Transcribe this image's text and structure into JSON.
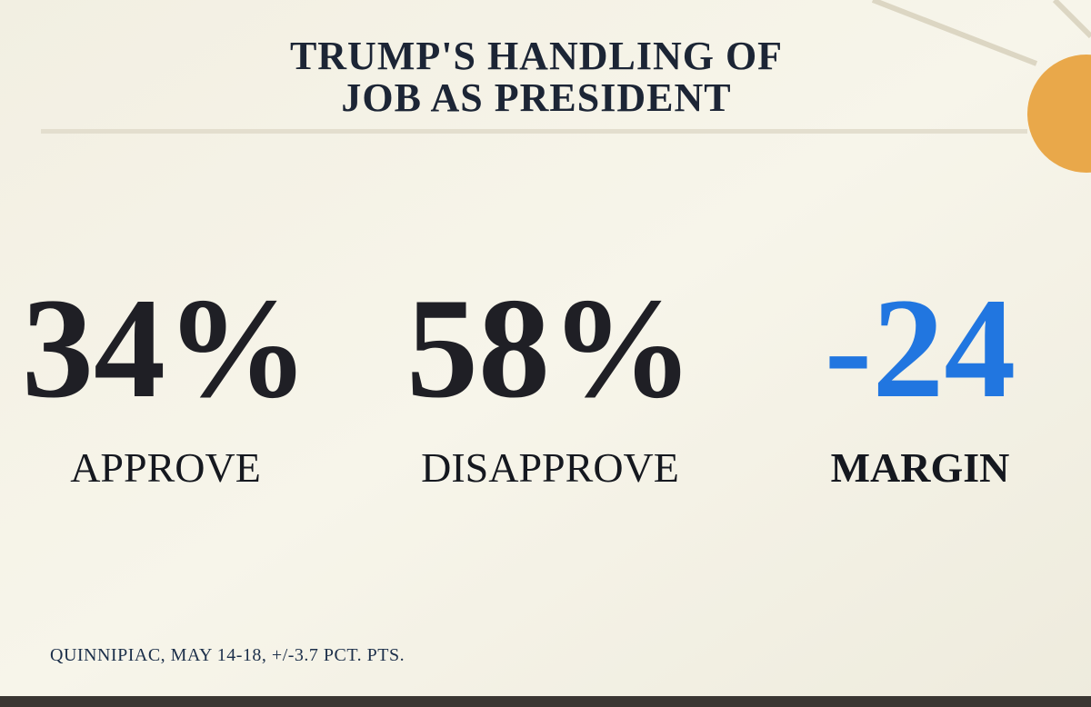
{
  "header": {
    "title_lines": [
      "TRUMP'S HANDLING OF",
      "JOB AS PRESIDENT"
    ]
  },
  "stats": [
    {
      "value": "34%",
      "label": "APPROVE"
    },
    {
      "value": "58%",
      "label": "DISAPPROVE"
    },
    {
      "value": "-24",
      "label": "MARGIN"
    }
  ],
  "footer": {
    "source": "QUINNIPIAC, MAY 14-18, +/-3.7 PCT. PTS."
  }
}
